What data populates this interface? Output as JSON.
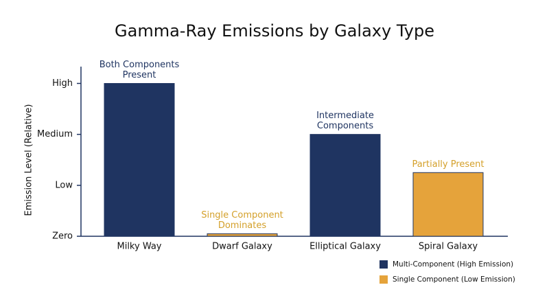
{
  "chart_data": {
    "type": "bar",
    "title": "Gamma-Ray Emissions by Galaxy Type",
    "y_label": "Emission Level (Relative)",
    "categories": [
      "Milky Way",
      "Dwarf Galaxy",
      "Elliptical Galaxy",
      "Spiral Galaxy"
    ],
    "values": [
      3,
      0.05,
      2,
      1.25
    ],
    "colors": [
      "#1f3461",
      "#e5a33b",
      "#1f3461",
      "#e5a33b"
    ],
    "ylim": [
      0,
      3.33
    ],
    "yticks": [
      {
        "value": 0,
        "label": "Zero"
      },
      {
        "value": 1,
        "label": "Low"
      },
      {
        "value": 2,
        "label": "Medium"
      },
      {
        "value": 3,
        "label": "High"
      }
    ],
    "annotations": [
      {
        "lines": [
          "Both Components",
          "Present"
        ],
        "color": "#1f3461"
      },
      {
        "lines": [
          "Single Component",
          "Dominates"
        ],
        "color": "#d4a02a"
      },
      {
        "lines": [
          "Intermediate",
          "Components"
        ],
        "color": "#1f3461"
      },
      {
        "lines": [
          "Partially Present"
        ],
        "color": "#d4a02a"
      }
    ],
    "legend": [
      {
        "name": "Multi-Component (High Emission)",
        "color": "#1f3461"
      },
      {
        "name": "Single Component (Low Emission)",
        "color": "#e5a33b"
      }
    ]
  }
}
